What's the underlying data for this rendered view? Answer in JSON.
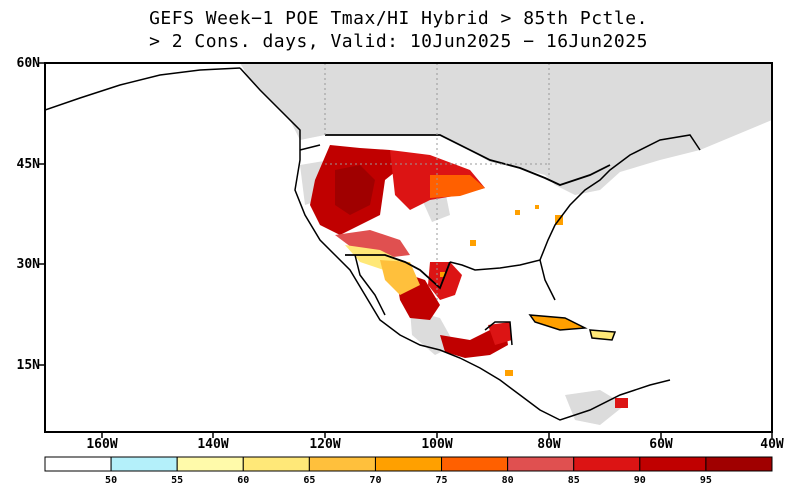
{
  "title": {
    "line1": "GEFS Week−1 POE Tmax/HI Hybrid > 85th Pctle.",
    "line2": "> 2 Cons. days, Valid: 10Jun2025 − 16Jun2025"
  },
  "lat_labels": [
    "60N",
    "45N",
    "30N",
    "15N"
  ],
  "lon_labels": [
    "160W",
    "140W",
    "120W",
    "100W",
    "80W",
    "60W",
    "40W"
  ],
  "colorbar": {
    "labels": [
      "50",
      "55",
      "60",
      "65",
      "70",
      "75",
      "80",
      "85",
      "90",
      "95"
    ],
    "colors": [
      "#ffffff",
      "#b4f0fa",
      "#fffaaa",
      "#ffe878",
      "#ffc03c",
      "#ffa000",
      "#ff6000",
      "#e05050",
      "#dc1414",
      "#c00000",
      "#a00000"
    ]
  },
  "map_colors": {
    "land_masked": "#dcdcdc",
    "ocean": "#ffffff",
    "border": "#000000"
  }
}
